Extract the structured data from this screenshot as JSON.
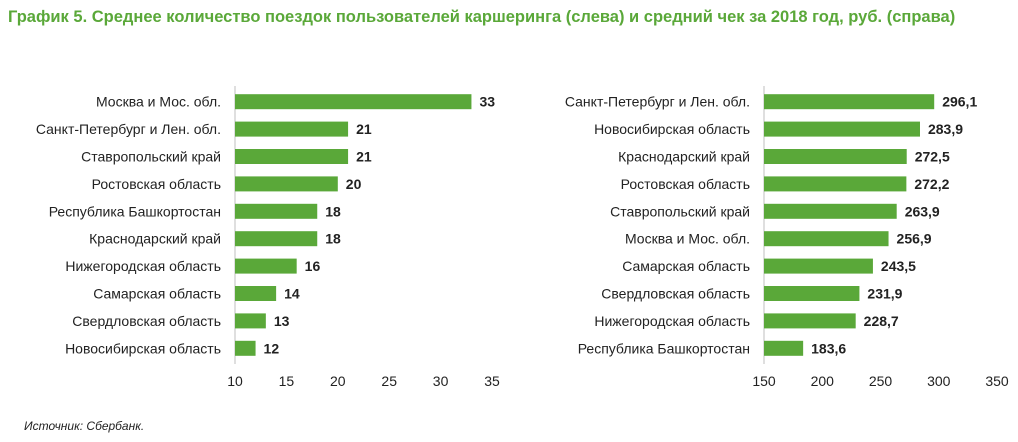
{
  "title": "График 5. Среднее количество поездок пользователей каршеринга (слева) и средний чек за 2018 год, руб. (справа)",
  "source": "Источник: Сбербанк.",
  "colors": {
    "bar": "#5aa839",
    "title": "#5aa839",
    "text": "#222222",
    "axis": "#bfbfbf"
  },
  "chart_data": [
    {
      "type": "bar",
      "orientation": "horizontal",
      "categories": [
        "Москва и Мос. обл.",
        "Санкт-Петербург и Лен. обл.",
        "Ставропольский край",
        "Ростовская область",
        "Республика Башкортостан",
        "Краснодарский край",
        "Нижегородская область",
        "Самарская область",
        "Свердловская область",
        "Новосибирская область"
      ],
      "values": [
        33,
        21,
        21,
        20,
        18,
        18,
        16,
        14,
        13,
        12
      ],
      "value_labels": [
        "33",
        "21",
        "21",
        "20",
        "18",
        "18",
        "16",
        "14",
        "13",
        "12"
      ],
      "xlim": [
        10,
        35
      ],
      "xticks": [
        10,
        15,
        20,
        25,
        30,
        35
      ],
      "xtick_labels": [
        "10",
        "15",
        "20",
        "25",
        "30",
        "35"
      ],
      "grid": false
    },
    {
      "type": "bar",
      "orientation": "horizontal",
      "categories": [
        "Санкт-Петербург и Лен. обл.",
        "Новосибирская область",
        "Краснодарский край",
        "Ростовская область",
        "Ставропольский край",
        "Москва и Мос. обл.",
        "Самарская область",
        "Свердловская область",
        "Нижегородская область",
        "Республика Башкортостан"
      ],
      "values": [
        296.1,
        283.9,
        272.5,
        272.2,
        263.9,
        256.9,
        243.5,
        231.9,
        228.7,
        183.6
      ],
      "value_labels": [
        "296,1",
        "283,9",
        "272,5",
        "272,2",
        "263,9",
        "256,9",
        "243,5",
        "231,9",
        "228,7",
        "183,6"
      ],
      "xlim": [
        150,
        350
      ],
      "xticks": [
        150,
        200,
        250,
        300,
        350
      ],
      "xtick_labels": [
        "150",
        "200",
        "250",
        "300",
        "350"
      ],
      "grid": false
    }
  ]
}
